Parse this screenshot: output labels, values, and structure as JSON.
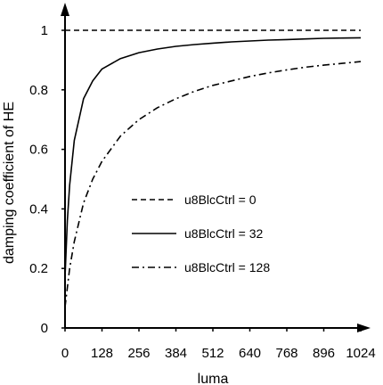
{
  "chart_data": {
    "type": "line",
    "xlabel": "luma",
    "ylabel": "damping coefficient of HE",
    "xlim": [
      0,
      1024
    ],
    "ylim": [
      0,
      1
    ],
    "x_ticks": [
      0,
      128,
      256,
      384,
      512,
      640,
      768,
      896,
      1024
    ],
    "x_tick_labels": [
      "0",
      "128",
      "256",
      "384",
      "512",
      "640",
      "768",
      "896",
      "1024"
    ],
    "y_ticks": [
      0,
      0.2,
      0.4,
      0.6,
      0.8,
      1
    ],
    "y_tick_labels": [
      "0",
      "0.2",
      "0.4",
      "0.6",
      "0.8",
      "1"
    ],
    "grid": false,
    "legend_position": "center-right",
    "series": [
      {
        "name": "u8BlcCtrl = 0",
        "style": "dashed",
        "x": [
          0,
          1024
        ],
        "y": [
          1,
          1
        ]
      },
      {
        "name": "u8BlcCtrl = 32",
        "style": "solid",
        "x": [
          0,
          8,
          16,
          32,
          64,
          96,
          128,
          192,
          256,
          320,
          384,
          448,
          512,
          576,
          640,
          704,
          768,
          832,
          896,
          960,
          1024
        ],
        "y": [
          0.17,
          0.36,
          0.48,
          0.63,
          0.77,
          0.83,
          0.87,
          0.905,
          0.925,
          0.937,
          0.946,
          0.952,
          0.957,
          0.961,
          0.964,
          0.967,
          0.969,
          0.971,
          0.973,
          0.974,
          0.975
        ]
      },
      {
        "name": "u8BlcCtrl = 128",
        "style": "dashdot",
        "x": [
          0,
          16,
          32,
          64,
          96,
          128,
          192,
          256,
          320,
          384,
          448,
          512,
          576,
          640,
          704,
          768,
          832,
          896,
          960,
          1024
        ],
        "y": [
          0.07,
          0.2,
          0.29,
          0.42,
          0.5,
          0.56,
          0.645,
          0.7,
          0.74,
          0.77,
          0.795,
          0.815,
          0.83,
          0.845,
          0.857,
          0.867,
          0.876,
          0.883,
          0.889,
          0.895
        ]
      }
    ]
  }
}
